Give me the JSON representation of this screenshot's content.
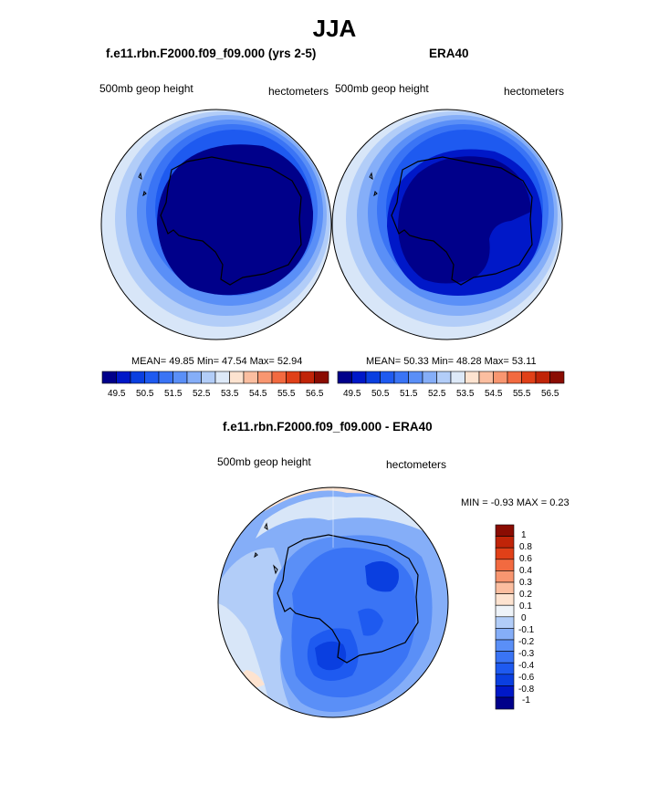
{
  "figure": {
    "title": "JJA"
  },
  "panel_model": {
    "title": "f.e11.rbn.F2000.f09_f09.000 (yrs 2-5)",
    "left_label": "500mb geop height",
    "right_label": "hectometers",
    "stats": "MEAN=  49.85  Min=  47.54  Max=  52.94"
  },
  "panel_obs": {
    "title": "ERA40",
    "left_label": "500mb geop height",
    "right_label": "hectometers",
    "stats": "MEAN=  50.33  Min=  48.28  Max=  53.11"
  },
  "panel_diff": {
    "title": "f.e11.rbn.F2000.f09_f09.000 - ERA40",
    "left_label": "500mb geop height",
    "right_label": "hectometers",
    "stats": "MIN =  -0.93 MAX =   0.23"
  },
  "colorbar_horizontal": {
    "ticks": [
      "49.5",
      "50.5",
      "51.5",
      "52.5",
      "53.5",
      "54.5",
      "55.5",
      "56.5"
    ],
    "colors": [
      "#00008a",
      "#0018c8",
      "#0a3fe0",
      "#1e5af0",
      "#3a74f5",
      "#5a8ff7",
      "#85aef8",
      "#b2cdf8",
      "#dde9f8",
      "#fde3d0",
      "#fbbea0",
      "#f89670",
      "#f26a40",
      "#e04018",
      "#c02408",
      "#8a0c02"
    ]
  },
  "colorbar_vertical": {
    "ticks": [
      "1",
      "0.8",
      "0.6",
      "0.4",
      "0.3",
      "0.2",
      "0.1",
      "0",
      "-0.1",
      "-0.2",
      "-0.3",
      "-0.4",
      "-0.6",
      "-0.8",
      "-1"
    ],
    "colors_top_to_bottom": [
      "#8a0c02",
      "#c02408",
      "#e04018",
      "#f26a40",
      "#f89670",
      "#fbbea0",
      "#fde3d0",
      "#eef3f8",
      "#b2cdf8",
      "#85aef8",
      "#5a8ff7",
      "#3a74f5",
      "#1e5af0",
      "#0a3fe0",
      "#0018c8",
      "#00008a"
    ]
  },
  "map_colors": {
    "ring1": "#d8e6f8",
    "ring2": "#b2cdf8",
    "ring3": "#85aef8",
    "ring4": "#5a8ff7",
    "ring5": "#3a74f5",
    "ring6": "#1e5af0",
    "ring7": "#0a3fe0",
    "ring8": "#0018c8",
    "core": "#00008a",
    "pos1": "#fde3d0"
  }
}
